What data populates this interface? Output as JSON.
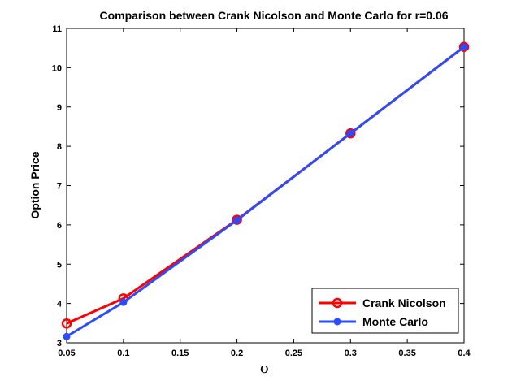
{
  "chart_data": {
    "type": "line",
    "title": "Comparison between Crank Nicolson and Monte Carlo for r=0.06",
    "xlabel": "σ",
    "ylabel": "Option Price",
    "xlim": [
      0.05,
      0.4
    ],
    "ylim": [
      3,
      11
    ],
    "xticks": [
      "0.05",
      "0.1",
      "0.15",
      "0.2",
      "0.25",
      "0.3",
      "0.35",
      "0.4"
    ],
    "yticks": [
      "3",
      "4",
      "5",
      "6",
      "7",
      "8",
      "9",
      "10",
      "11"
    ],
    "grid": false,
    "legend_position": "bottom-right",
    "x": [
      0.05,
      0.1,
      0.2,
      0.3,
      0.4
    ],
    "series": [
      {
        "name": "Crank Nicolson",
        "color": "#ff0000",
        "marker": "open-circle",
        "values": [
          3.49,
          4.13,
          6.13,
          8.33,
          10.53
        ]
      },
      {
        "name": "Monte Carlo",
        "color": "#2a4bff",
        "marker": "filled-circle",
        "values": [
          3.16,
          4.03,
          6.12,
          8.33,
          10.53
        ]
      }
    ]
  }
}
